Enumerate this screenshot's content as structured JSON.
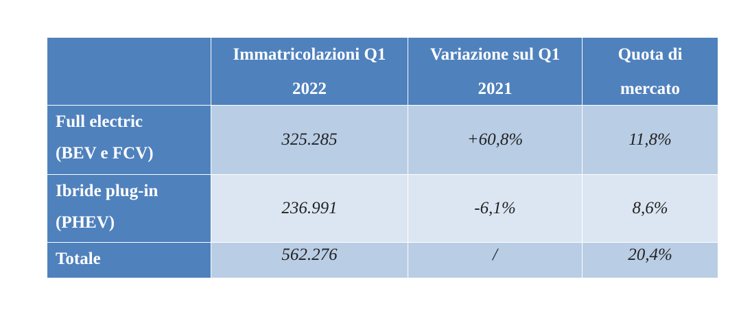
{
  "headers": {
    "col1": [
      "Immatricolazioni Q1",
      "2022"
    ],
    "col2": [
      "Variazione sul Q1",
      "2021"
    ],
    "col3": [
      "Quota di",
      "mercato"
    ]
  },
  "rows": [
    {
      "label": [
        "Full electric",
        "(BEV e FCV)"
      ],
      "registrations": "325.285",
      "change": "+60,8%",
      "share": "11,8%"
    },
    {
      "label": [
        "Ibride plug-in",
        "(PHEV)"
      ],
      "registrations": "236.991",
      "change": "-6,1%",
      "share": "8,6%"
    },
    {
      "label": [
        "Totale"
      ],
      "registrations": "562.276",
      "change": "/",
      "share": "20,4%"
    }
  ],
  "colors": {
    "header_blue": "#4f81bd",
    "row_dark": "#b9cde5",
    "row_light": "#dce6f2"
  }
}
